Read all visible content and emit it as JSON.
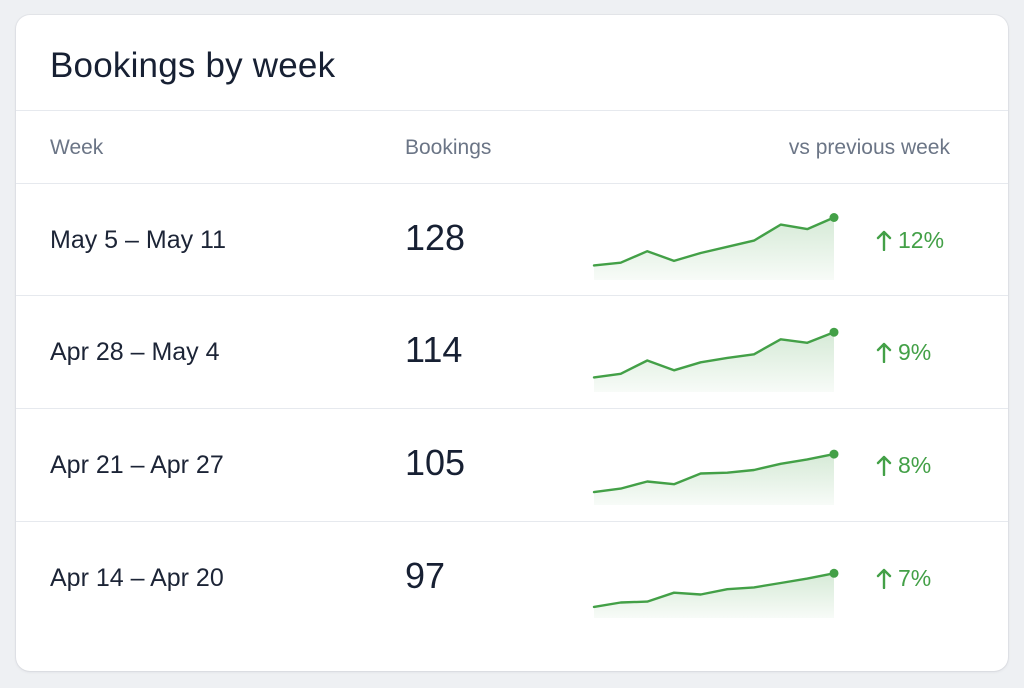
{
  "title": "Bookings by week",
  "columns": {
    "week": "Week",
    "bookings": "Bookings",
    "change": "vs previous week"
  },
  "colors": {
    "accent_green": "#43a047",
    "title_text": "#172033",
    "header_text": "#6b7586",
    "divider": "#e6e9ee"
  },
  "rows": [
    {
      "week": "May 5 – May 11",
      "bookings": "128",
      "change": "12%",
      "trend_icon": "arrow-up-icon",
      "sparkline": [
        12,
        15,
        28,
        17,
        26,
        33,
        40,
        58,
        53,
        66
      ]
    },
    {
      "week": "Apr 28 – May 4",
      "bookings": "114",
      "change": "9%",
      "trend_icon": "arrow-up-icon",
      "sparkline": [
        12,
        16,
        31,
        20,
        29,
        34,
        38,
        55,
        51,
        63
      ]
    },
    {
      "week": "Apr 21 – Apr 27",
      "bookings": "105",
      "change": "8%",
      "trend_icon": "arrow-up-icon",
      "sparkline": [
        10,
        14,
        22,
        19,
        31,
        32,
        35,
        42,
        47,
        53
      ]
    },
    {
      "week": "Apr 14 – Apr 20",
      "bookings": "97",
      "change": "7%",
      "trend_icon": "arrow-up-icon",
      "sparkline": [
        8,
        13,
        14,
        24,
        22,
        28,
        30,
        35,
        40,
        46
      ]
    }
  ]
}
